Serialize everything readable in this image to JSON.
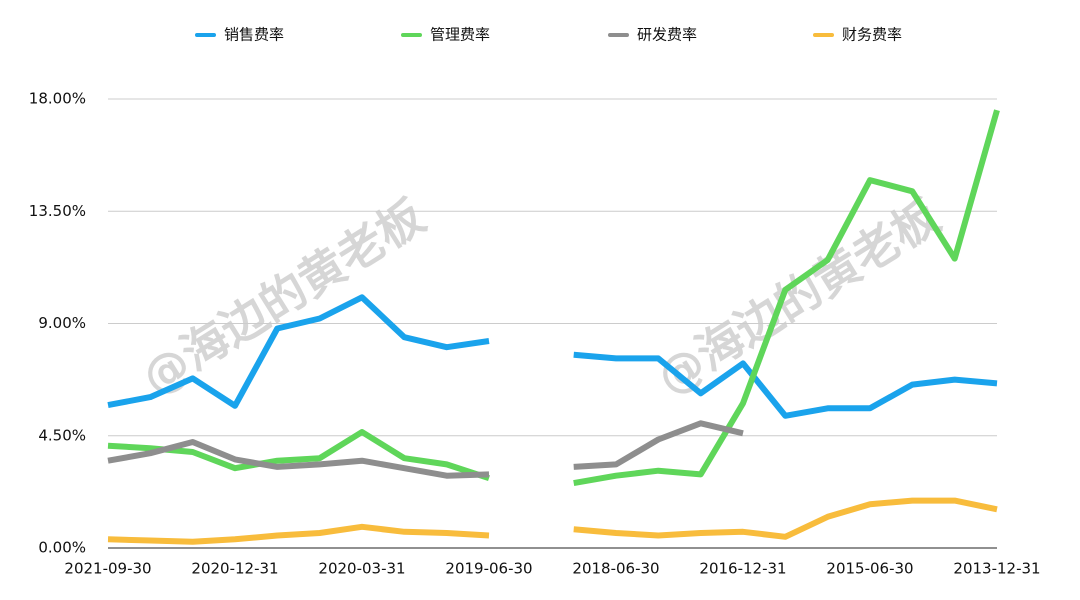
{
  "chart_data": {
    "type": "line",
    "watermark": "@海边的黄老板",
    "categories": [
      "2021-09-30",
      null,
      null,
      "2020-12-31",
      null,
      null,
      "2020-03-31",
      null,
      null,
      "2019-06-30",
      null,
      null,
      "2018-06-30",
      null,
      null,
      "2016-12-31",
      null,
      null,
      "2015-06-30",
      null,
      null,
      "2013-12-31"
    ],
    "series": [
      {
        "name": "销售费率",
        "color": "#1aa3ec",
        "values": [
          5.73,
          6.05,
          6.8,
          5.7,
          8.8,
          9.2,
          10.05,
          8.45,
          8.05,
          8.3,
          null,
          7.75,
          7.6,
          7.6,
          6.2,
          7.4,
          5.3,
          5.6,
          5.6,
          6.55,
          6.75,
          6.6
        ]
      },
      {
        "name": "管理费率",
        "color": "#5fd65a",
        "values": [
          4.1,
          4.0,
          3.85,
          3.2,
          3.5,
          3.6,
          4.65,
          3.6,
          3.35,
          2.8,
          null,
          2.6,
          2.9,
          3.1,
          2.95,
          5.8,
          10.35,
          11.55,
          14.75,
          14.3,
          11.6,
          17.55
        ]
      },
      {
        "name": "研发费率",
        "color": "#8e8e8e",
        "values": [
          3.5,
          3.8,
          4.25,
          3.55,
          3.25,
          3.35,
          3.5,
          3.2,
          2.9,
          2.95,
          null,
          3.25,
          3.35,
          4.35,
          5.0,
          4.6,
          null,
          null,
          null,
          null,
          null,
          null
        ]
      },
      {
        "name": "财务费率",
        "color": "#f8bc3c",
        "values": [
          0.35,
          0.3,
          0.25,
          0.35,
          0.5,
          0.6,
          0.85,
          0.65,
          0.6,
          0.5,
          null,
          0.75,
          0.6,
          0.5,
          0.6,
          0.65,
          0.45,
          1.25,
          1.75,
          1.9,
          1.9,
          1.55
        ]
      }
    ],
    "ylim": [
      0,
      18
    ],
    "yticks": [
      {
        "value": 0,
        "label": "0.00%"
      },
      {
        "value": 4.5,
        "label": "4.50%"
      },
      {
        "value": 9,
        "label": "9.00%"
      },
      {
        "value": 13.5,
        "label": "13.50%"
      },
      {
        "value": 18,
        "label": "18.00%"
      }
    ],
    "grid": true
  }
}
